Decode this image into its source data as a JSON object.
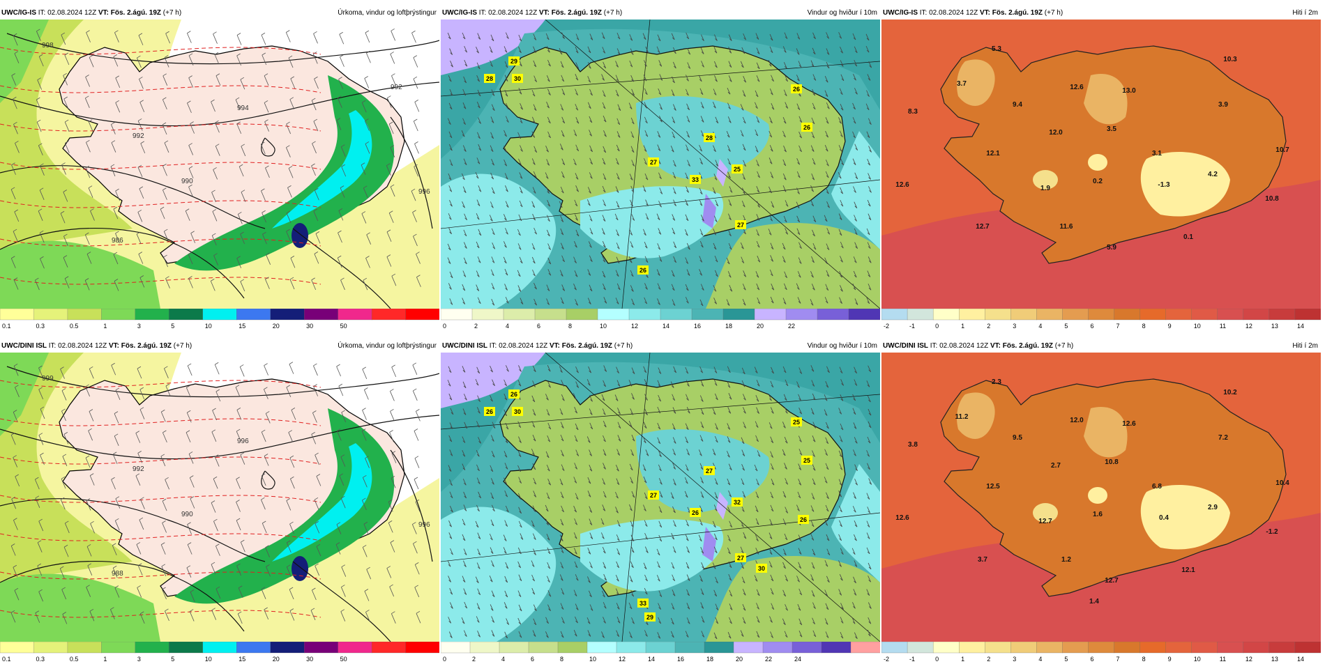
{
  "rows": [
    {
      "panels": [
        {
          "model": "UWC/IG-IS",
          "it_label": "IT:",
          "it": "02.08.2024 12Z",
          "vt_label": "VT:",
          "vt": "Fös. 2.ágú. 19Z",
          "lead": "(+7 h)",
          "title": "Úrkoma, vindur og loftþrýstingur",
          "type": "precip",
          "isobars": [
            "998",
            "994",
            "992",
            "990",
            "986",
            "996",
            "992"
          ],
          "colorbar": {
            "labels": [
              "0.1",
              "0.3",
              "0.5",
              "1",
              "3",
              "5",
              "10",
              "15",
              "20",
              "30",
              "50"
            ],
            "colors": [
              "#ffff99",
              "#e5f27a",
              "#c8e05a",
              "#7ed957",
              "#22b14c",
              "#0c7a4a",
              "#00f0f0",
              "#3c78f0",
              "#141e78",
              "#780078",
              "#f0288c",
              "#ff2828",
              "#ff0000"
            ]
          },
          "labels": []
        },
        {
          "model": "UWC/IG-IS",
          "it_label": "IT:",
          "it": "02.08.2024 12Z",
          "vt_label": "VT:",
          "vt": "Fös. 2.ágú. 19Z",
          "lead": "(+7 h)",
          "title": "Vindur og hviður í 10m",
          "type": "wind",
          "colorbar": {
            "labels": [
              "0",
              "2",
              "4",
              "6",
              "8",
              "10",
              "12",
              "14",
              "16",
              "18",
              "20",
              "22"
            ],
            "colors": [
              "#fffff0",
              "#eff7c8",
              "#dcedaa",
              "#c6df8c",
              "#a8cf66",
              "#b4ffff",
              "#8ceaea",
              "#6cd2d2",
              "#4cb4b4",
              "#2a9696",
              "#c8b4ff",
              "#a08cf0",
              "#7860d8",
              "#5036b4"
            ]
          },
          "labels": [
            "29",
            "28",
            "30",
            "26",
            "26",
            "27",
            "28",
            "33",
            "25",
            "27",
            "26"
          ]
        },
        {
          "model": "UWC/IG-IS",
          "it_label": "IT:",
          "it": "02.08.2024 12Z",
          "vt_label": "VT:",
          "vt": "Fös. 2.ágú. 19Z",
          "lead": "(+7 h)",
          "title": "Hiti í 2m",
          "type": "temp",
          "colorbar": {
            "labels": [
              "-2",
              "-1",
              "0",
              "1",
              "2",
              "3",
              "4",
              "5",
              "6",
              "7",
              "8",
              "9",
              "10",
              "11",
              "12",
              "13",
              "14"
            ],
            "colors": [
              "#b4dcf0",
              "#d2e6dc",
              "#ffffc8",
              "#fff0a0",
              "#f5e08c",
              "#f0cc78",
              "#eab464",
              "#e49c50",
              "#de8a3c",
              "#d8782c",
              "#e66a2a",
              "#e4643c",
              "#e05a46",
              "#d85050",
              "#d24646",
              "#c83c3c",
              "#be3232"
            ]
          },
          "labels": [
            "5.3",
            "10.3",
            "3.7",
            "9.4",
            "12.6",
            "13.0",
            "3.9",
            "8.3",
            "12.0",
            "3.5",
            "3.1",
            "10.7",
            "12.1",
            "4.2",
            "12.6",
            "1.9",
            "0.2",
            "-1.3",
            "10.8",
            "12.7",
            "11.6",
            "0.1",
            "5.9"
          ]
        }
      ]
    },
    {
      "panels": [
        {
          "model": "UWC/DINI ISL",
          "it_label": "IT:",
          "it": "02.08.2024 12Z",
          "vt_label": "VT:",
          "vt": "Fös. 2.ágú. 19Z",
          "lead": "(+7 h)",
          "title": "Úrkoma, vindur og loftþrýstingur",
          "type": "precip",
          "isobars": [
            "999",
            "996",
            "992",
            "990",
            "988",
            "996"
          ],
          "colorbar": {
            "labels": [
              "0.1",
              "0.3",
              "0.5",
              "1",
              "3",
              "5",
              "10",
              "15",
              "20",
              "30",
              "50"
            ],
            "colors": [
              "#ffff99",
              "#e5f27a",
              "#c8e05a",
              "#7ed957",
              "#22b14c",
              "#0c7a4a",
              "#00f0f0",
              "#3c78f0",
              "#141e78",
              "#780078",
              "#f0288c",
              "#ff2828",
              "#ff0000"
            ]
          },
          "labels": []
        },
        {
          "model": "UWC/DINI ISL",
          "it_label": "IT:",
          "it": "02.08.2024 12Z",
          "vt_label": "VT:",
          "vt": "Fös. 2.ágú. 19Z",
          "lead": "(+7 h)",
          "title": "Vindur og hviður í 10m",
          "type": "wind",
          "colorbar": {
            "labels": [
              "0",
              "2",
              "4",
              "6",
              "8",
              "10",
              "12",
              "14",
              "16",
              "18",
              "20",
              "22",
              "24"
            ],
            "colors": [
              "#fffff0",
              "#eff7c8",
              "#dcedaa",
              "#c6df8c",
              "#a8cf66",
              "#b4ffff",
              "#8ceaea",
              "#6cd2d2",
              "#4cb4b4",
              "#2a9696",
              "#c8b4ff",
              "#a08cf0",
              "#7860d8",
              "#5036b4",
              "#ffa0a0"
            ]
          },
          "labels": [
            "26",
            "26",
            "30",
            "25",
            "25",
            "27",
            "27",
            "26",
            "32",
            "27",
            "33",
            "30",
            "26",
            "29"
          ]
        },
        {
          "model": "UWC/DINI ISL",
          "it_label": "IT:",
          "it": "02.08.2024 12Z",
          "vt_label": "VT:",
          "vt": "Fös. 2.ágú. 19Z",
          "lead": "(+7 h)",
          "title": "Hiti í 2m",
          "type": "temp",
          "colorbar": {
            "labels": [
              "-2",
              "-1",
              "0",
              "1",
              "2",
              "3",
              "4",
              "5",
              "6",
              "7",
              "8",
              "9",
              "10",
              "11",
              "12",
              "13",
              "14"
            ],
            "colors": [
              "#b4dcf0",
              "#d2e6dc",
              "#ffffc8",
              "#fff0a0",
              "#f5e08c",
              "#f0cc78",
              "#eab464",
              "#e49c50",
              "#de8a3c",
              "#d8782c",
              "#e66a2a",
              "#e4643c",
              "#e05a46",
              "#d85050",
              "#d24646",
              "#c83c3c",
              "#be3232"
            ]
          },
          "labels": [
            "2.3",
            "10.2",
            "11.2",
            "9.5",
            "12.0",
            "12.6",
            "7.2",
            "3.8",
            "2.7",
            "10.8",
            "6.8",
            "10.4",
            "12.5",
            "2.9",
            "12.6",
            "12.7",
            "1.6",
            "0.4",
            "-1.2",
            "3.7",
            "1.2",
            "12.1",
            "12.7",
            "1.4"
          ]
        }
      ]
    }
  ]
}
